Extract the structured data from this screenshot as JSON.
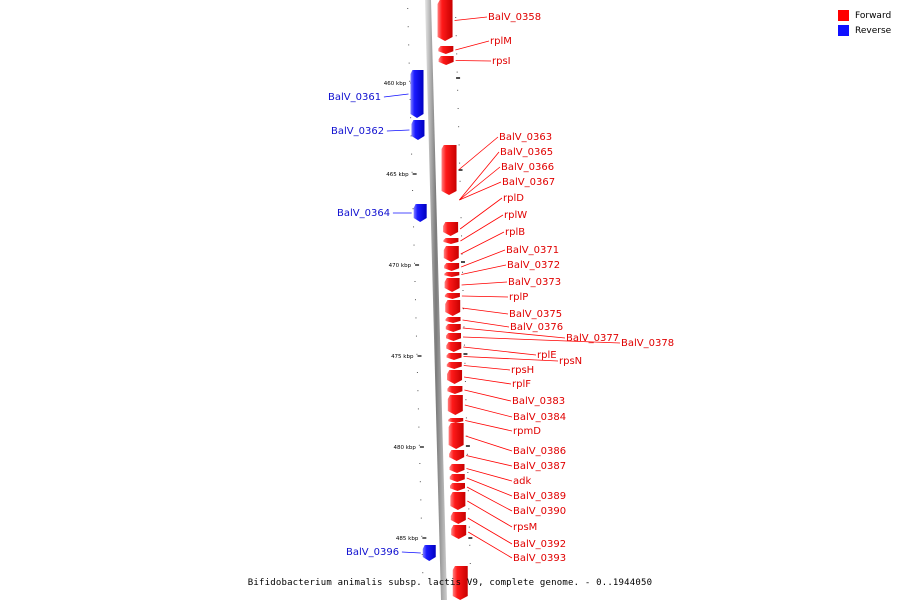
{
  "legend": {
    "forward": {
      "label": "Forward",
      "color": "#ff0000"
    },
    "reverse": {
      "label": "Reverse",
      "color": "#1010ff"
    }
  },
  "caption": "Bifidobacterium animalis subsp. lactis V9, complete genome. - 0..1944050",
  "axis": {
    "unit": "kbp",
    "major_ticks": [
      {
        "label": "460 kbp",
        "kbp": 460
      },
      {
        "label": "465 kbp",
        "kbp": 465
      },
      {
        "label": "470 kbp",
        "kbp": 470
      },
      {
        "label": "475 kbp",
        "kbp": 475
      },
      {
        "label": "480 kbp",
        "kbp": 480
      },
      {
        "label": "485 kbp",
        "kbp": 485
      }
    ]
  },
  "genes": [
    {
      "name": "BalV_0358",
      "strand": "forward"
    },
    {
      "name": "rplM",
      "strand": "forward"
    },
    {
      "name": "rpsI",
      "strand": "forward"
    },
    {
      "name": "BalV_0361",
      "strand": "reverse"
    },
    {
      "name": "BalV_0362",
      "strand": "reverse"
    },
    {
      "name": "BalV_0363",
      "strand": "forward"
    },
    {
      "name": "BalV_0365",
      "strand": "forward"
    },
    {
      "name": "BalV_0366",
      "strand": "forward"
    },
    {
      "name": "BalV_0367",
      "strand": "forward"
    },
    {
      "name": "BalV_0364",
      "strand": "reverse"
    },
    {
      "name": "rplD",
      "strand": "forward"
    },
    {
      "name": "rplW",
      "strand": "forward"
    },
    {
      "name": "rplB",
      "strand": "forward"
    },
    {
      "name": "BalV_0371",
      "strand": "forward"
    },
    {
      "name": "BalV_0372",
      "strand": "forward"
    },
    {
      "name": "BalV_0373",
      "strand": "forward"
    },
    {
      "name": "rplP",
      "strand": "forward"
    },
    {
      "name": "BalV_0375",
      "strand": "forward"
    },
    {
      "name": "BalV_0376",
      "strand": "forward"
    },
    {
      "name": "BalV_0377",
      "strand": "forward"
    },
    {
      "name": "BalV_0378",
      "strand": "forward"
    },
    {
      "name": "rplE",
      "strand": "forward"
    },
    {
      "name": "rpsN",
      "strand": "forward"
    },
    {
      "name": "rpsH",
      "strand": "forward"
    },
    {
      "name": "rplF",
      "strand": "forward"
    },
    {
      "name": "BalV_0383",
      "strand": "forward"
    },
    {
      "name": "BalV_0384",
      "strand": "forward"
    },
    {
      "name": "rpmD",
      "strand": "forward"
    },
    {
      "name": "BalV_0386",
      "strand": "forward"
    },
    {
      "name": "BalV_0387",
      "strand": "forward"
    },
    {
      "name": "adk",
      "strand": "forward"
    },
    {
      "name": "BalV_0389",
      "strand": "forward"
    },
    {
      "name": "BalV_0390",
      "strand": "forward"
    },
    {
      "name": "rpsM",
      "strand": "forward"
    },
    {
      "name": "BalV_0392",
      "strand": "forward"
    },
    {
      "name": "BalV_0393",
      "strand": "forward"
    },
    {
      "name": "BalV_0396",
      "strand": "reverse"
    }
  ]
}
